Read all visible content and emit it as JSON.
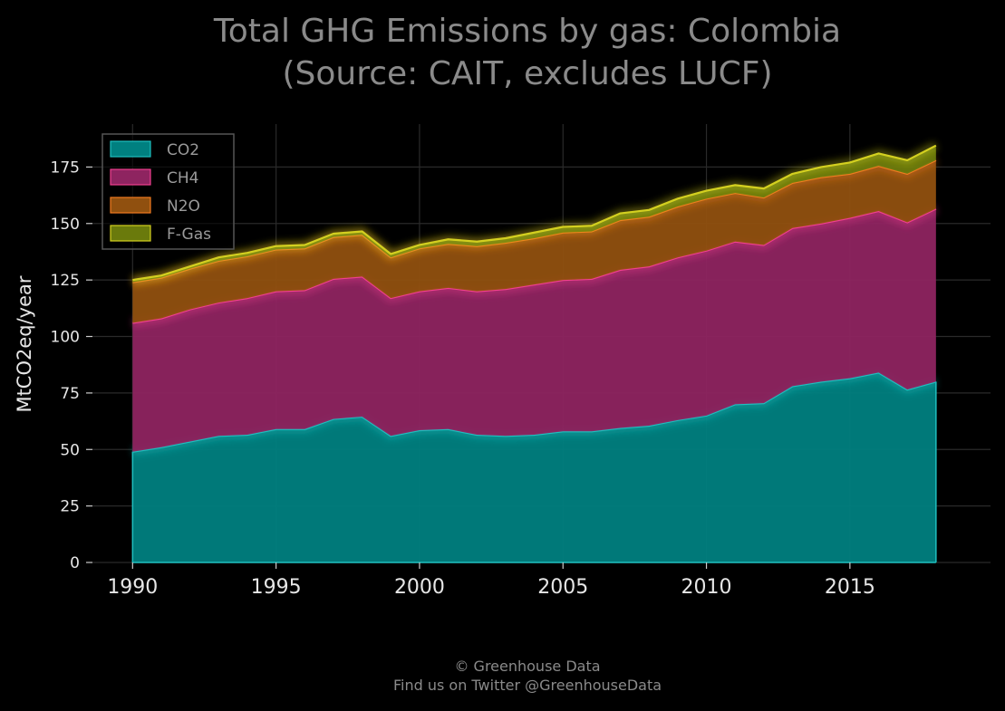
{
  "chart_data": {
    "type": "area",
    "stacked": true,
    "title": "Total GHG Emissions by gas: Colombia",
    "subtitle": "(Source: CAIT, excludes LUCF)",
    "xlabel": "",
    "ylabel": "MtCO2eq/year",
    "xlim": [
      1988.6,
      2019.9
    ],
    "ylim": [
      0,
      194
    ],
    "xticks": [
      1990,
      1995,
      2000,
      2005,
      2010,
      2015
    ],
    "yticks": [
      0,
      25,
      50,
      75,
      100,
      125,
      150,
      175
    ],
    "grid": true,
    "legend_position": "top-left",
    "x": [
      1990,
      1991,
      1992,
      1993,
      1994,
      1995,
      1996,
      1997,
      1998,
      1999,
      2000,
      2001,
      2002,
      2003,
      2004,
      2005,
      2006,
      2007,
      2008,
      2009,
      2010,
      2011,
      2012,
      2013,
      2014,
      2015,
      2016,
      2017,
      2018
    ],
    "series": [
      {
        "name": "CO2",
        "color": "#008080",
        "line_color": "#1fbfbf",
        "values": [
          49,
          51,
          53.5,
          56,
          56.5,
          59,
          59,
          63.5,
          64.5,
          56,
          58.5,
          59,
          56.5,
          56,
          56.5,
          58,
          58,
          59.5,
          60.5,
          63,
          65,
          70,
          70.5,
          78,
          80,
          81.5,
          84,
          76.5,
          80
        ]
      },
      {
        "name": "CH4",
        "color": "#8e2460",
        "line_color": "#f0408f",
        "values": [
          57,
          57,
          58.5,
          59,
          60.5,
          61,
          61.5,
          62,
          62,
          61,
          61.5,
          62.5,
          63.5,
          65,
          66.5,
          67,
          67.5,
          70,
          70.5,
          72,
          73,
          72,
          70,
          70,
          70,
          71,
          71.5,
          74,
          76.5
        ]
      },
      {
        "name": "N2O",
        "color": "#90500f",
        "line_color": "#f07a20",
        "values": [
          18,
          18,
          18,
          18.5,
          18.5,
          18.5,
          18.5,
          18.5,
          18.5,
          18,
          19,
          19.5,
          20,
          20.5,
          20.5,
          21,
          21,
          22,
          22,
          22.5,
          23,
          21.5,
          21,
          20,
          20.5,
          19.5,
          20,
          21.5,
          21.5
        ]
      },
      {
        "name": "F-Gas",
        "color": "#6a7a0c",
        "line_color": "#d4d020",
        "values": [
          1,
          1,
          1,
          1.5,
          1.5,
          1.5,
          1.5,
          1.5,
          1.5,
          1.5,
          1.5,
          2,
          2,
          2,
          2.5,
          2.5,
          2.5,
          3,
          3,
          3.5,
          3.5,
          3.5,
          4,
          4,
          4.5,
          5,
          5.5,
          6,
          6.5
        ]
      }
    ]
  },
  "footer": {
    "copyright": "© Greenhouse Data",
    "twitter": "Find us on Twitter @GreenhouseData"
  }
}
